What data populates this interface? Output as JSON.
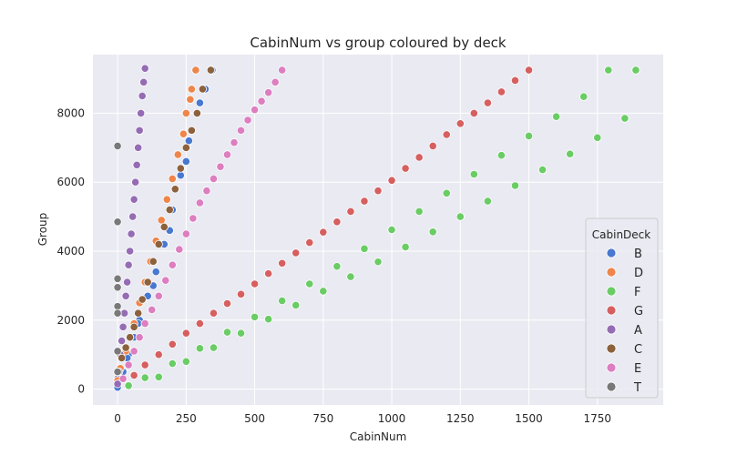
{
  "chart_data": {
    "type": "scatter",
    "title": "CabinNum vs group coloured by deck",
    "xlabel": "CabinNum",
    "ylabel": "Group",
    "xlim": [
      -90,
      1990
    ],
    "ylim": [
      -460,
      9700
    ],
    "xticks": [
      0,
      250,
      500,
      750,
      1000,
      1250,
      1500,
      1750
    ],
    "yticks": [
      0,
      2000,
      4000,
      6000,
      8000
    ],
    "grid": true,
    "background": "#eaeaf2",
    "legend": {
      "title": "CabinDeck",
      "placement": "lower-right"
    },
    "series": [
      {
        "name": "B",
        "color": "#4878d0",
        "points": [
          [
            0,
            50
          ],
          [
            20,
            500
          ],
          [
            40,
            1000
          ],
          [
            60,
            1500
          ],
          [
            80,
            2000
          ],
          [
            110,
            2700
          ],
          [
            140,
            3400
          ],
          [
            170,
            4200
          ],
          [
            200,
            5200
          ],
          [
            230,
            6200
          ],
          [
            260,
            7200
          ],
          [
            290,
            8000
          ],
          [
            320,
            8700
          ],
          [
            345,
            9250
          ],
          [
            0,
            300
          ],
          [
            35,
            900
          ],
          [
            75,
            1900
          ],
          [
            130,
            3000
          ],
          [
            190,
            4600
          ],
          [
            250,
            6600
          ],
          [
            300,
            8300
          ]
        ]
      },
      {
        "name": "D",
        "color": "#ee854a",
        "points": [
          [
            0,
            250
          ],
          [
            30,
            1100
          ],
          [
            60,
            1900
          ],
          [
            100,
            3100
          ],
          [
            140,
            4300
          ],
          [
            180,
            5500
          ],
          [
            220,
            6800
          ],
          [
            250,
            8000
          ],
          [
            270,
            8700
          ],
          [
            285,
            9250
          ],
          [
            10,
            600
          ],
          [
            45,
            1500
          ],
          [
            80,
            2500
          ],
          [
            120,
            3700
          ],
          [
            160,
            4900
          ],
          [
            200,
            6100
          ],
          [
            240,
            7400
          ],
          [
            265,
            8400
          ]
        ]
      },
      {
        "name": "F",
        "color": "#6acc64",
        "points": [
          [
            40,
            100
          ],
          [
            100,
            330
          ],
          [
            200,
            740
          ],
          [
            300,
            1180
          ],
          [
            400,
            1650
          ],
          [
            500,
            2090
          ],
          [
            600,
            2560
          ],
          [
            700,
            3050
          ],
          [
            800,
            3560
          ],
          [
            900,
            4070
          ],
          [
            1000,
            4620
          ],
          [
            1100,
            5150
          ],
          [
            1200,
            5680
          ],
          [
            1300,
            6230
          ],
          [
            1400,
            6780
          ],
          [
            1500,
            7340
          ],
          [
            1600,
            7900
          ],
          [
            1700,
            8480
          ],
          [
            1790,
            9250
          ],
          [
            150,
            350
          ],
          [
            250,
            800
          ],
          [
            350,
            1200
          ],
          [
            450,
            1620
          ],
          [
            550,
            2030
          ],
          [
            650,
            2430
          ],
          [
            750,
            2840
          ],
          [
            850,
            3260
          ],
          [
            950,
            3690
          ],
          [
            1050,
            4120
          ],
          [
            1150,
            4560
          ],
          [
            1250,
            5000
          ],
          [
            1350,
            5450
          ],
          [
            1450,
            5900
          ],
          [
            1550,
            6360
          ],
          [
            1650,
            6820
          ],
          [
            1750,
            7290
          ],
          [
            1850,
            7850
          ],
          [
            1890,
            9250
          ]
        ]
      },
      {
        "name": "G",
        "color": "#d65f5f",
        "points": [
          [
            60,
            400
          ],
          [
            150,
            1000
          ],
          [
            250,
            1620
          ],
          [
            350,
            2200
          ],
          [
            450,
            2750
          ],
          [
            550,
            3350
          ],
          [
            650,
            3950
          ],
          [
            750,
            4550
          ],
          [
            850,
            5150
          ],
          [
            950,
            5750
          ],
          [
            1050,
            6400
          ],
          [
            1150,
            7050
          ],
          [
            1250,
            7700
          ],
          [
            1350,
            8300
          ],
          [
            1450,
            8950
          ],
          [
            1500,
            9250
          ],
          [
            100,
            700
          ],
          [
            200,
            1300
          ],
          [
            300,
            1900
          ],
          [
            400,
            2480
          ],
          [
            500,
            3050
          ],
          [
            600,
            3650
          ],
          [
            700,
            4250
          ],
          [
            800,
            4850
          ],
          [
            900,
            5450
          ],
          [
            1000,
            6050
          ],
          [
            1100,
            6720
          ],
          [
            1200,
            7380
          ],
          [
            1300,
            8000
          ],
          [
            1400,
            8620
          ]
        ]
      },
      {
        "name": "A",
        "color": "#956cb4",
        "points": [
          [
            0,
            150
          ],
          [
            10,
            1000
          ],
          [
            20,
            1800
          ],
          [
            30,
            2700
          ],
          [
            40,
            3600
          ],
          [
            50,
            4500
          ],
          [
            60,
            5500
          ],
          [
            70,
            6500
          ],
          [
            80,
            7500
          ],
          [
            90,
            8500
          ],
          [
            100,
            9300
          ],
          [
            5,
            500
          ],
          [
            15,
            1400
          ],
          [
            25,
            2200
          ],
          [
            35,
            3100
          ],
          [
            45,
            4000
          ],
          [
            55,
            5000
          ],
          [
            65,
            6000
          ],
          [
            75,
            7000
          ],
          [
            85,
            8000
          ],
          [
            95,
            8900
          ]
        ]
      },
      {
        "name": "C",
        "color": "#8c613c",
        "points": [
          [
            0,
            500
          ],
          [
            30,
            1200
          ],
          [
            60,
            1800
          ],
          [
            90,
            2600
          ],
          [
            130,
            3700
          ],
          [
            170,
            4700
          ],
          [
            210,
            5800
          ],
          [
            250,
            7000
          ],
          [
            290,
            8000
          ],
          [
            310,
            8700
          ],
          [
            340,
            9250
          ],
          [
            15,
            900
          ],
          [
            45,
            1500
          ],
          [
            75,
            2200
          ],
          [
            110,
            3100
          ],
          [
            150,
            4200
          ],
          [
            190,
            5200
          ],
          [
            230,
            6400
          ],
          [
            270,
            7500
          ]
        ]
      },
      {
        "name": "E",
        "color": "#dc7ec0",
        "points": [
          [
            20,
            300
          ],
          [
            60,
            1100
          ],
          [
            100,
            1900
          ],
          [
            150,
            2700
          ],
          [
            200,
            3600
          ],
          [
            250,
            4500
          ],
          [
            300,
            5400
          ],
          [
            350,
            6100
          ],
          [
            400,
            6800
          ],
          [
            450,
            7500
          ],
          [
            500,
            8100
          ],
          [
            550,
            8600
          ],
          [
            600,
            9250
          ],
          [
            40,
            700
          ],
          [
            80,
            1500
          ],
          [
            125,
            2300
          ],
          [
            175,
            3150
          ],
          [
            225,
            4050
          ],
          [
            275,
            4950
          ],
          [
            325,
            5750
          ],
          [
            375,
            6450
          ],
          [
            425,
            7150
          ],
          [
            475,
            7800
          ],
          [
            525,
            8350
          ],
          [
            575,
            8900
          ]
        ]
      },
      {
        "name": "T",
        "color": "#797979",
        "points": [
          [
            0,
            7050
          ],
          [
            0,
            4850
          ],
          [
            0,
            3200
          ],
          [
            0,
            2950
          ],
          [
            0,
            2400
          ],
          [
            0,
            2200
          ],
          [
            0,
            1100
          ],
          [
            0,
            500
          ]
        ]
      }
    ]
  }
}
